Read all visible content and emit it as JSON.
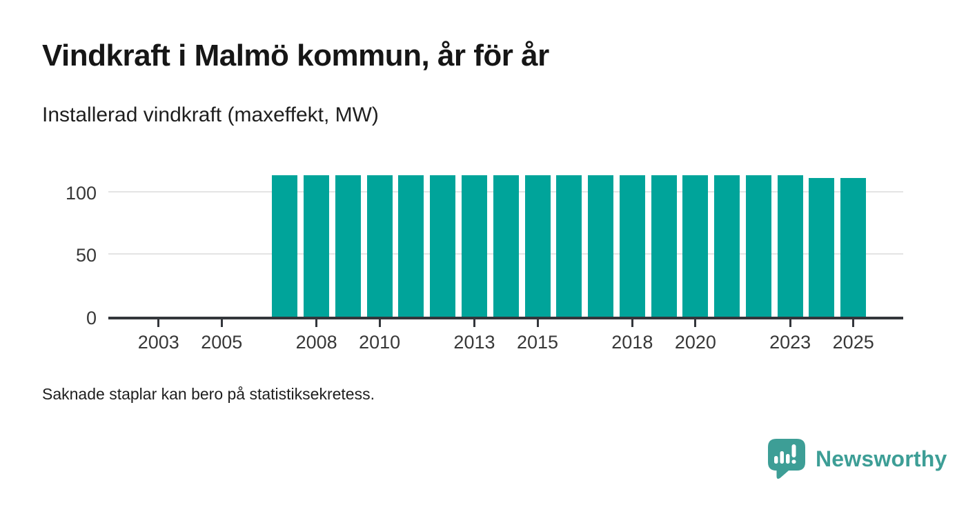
{
  "header": {
    "title": "Vindkraft i Malmö kommun, år för år",
    "subtitle": "Installerad vindkraft (maxeffekt, MW)"
  },
  "footnote": "Saknade staplar kan bero på statistiksekretess.",
  "branding": {
    "name": "Newsworthy",
    "logo_icon": "newsworthy-bubble-chart-icon",
    "logo_color": "#3d9e96"
  },
  "chart_data": {
    "type": "bar",
    "title": "Vindkraft i Malmö kommun, år för år",
    "ylabel": "Installerad vindkraft (maxeffekt, MW)",
    "xlabel": "",
    "x": [
      2002,
      2003,
      2004,
      2005,
      2006,
      2007,
      2008,
      2009,
      2010,
      2011,
      2012,
      2013,
      2014,
      2015,
      2016,
      2017,
      2018,
      2019,
      2020,
      2021,
      2022,
      2023,
      2024,
      2025
    ],
    "values": [
      null,
      null,
      null,
      null,
      null,
      113,
      113,
      113,
      113,
      113,
      113,
      113,
      113,
      113,
      113,
      113,
      113,
      113,
      113,
      113,
      113,
      113,
      111,
      111
    ],
    "missing_years": [
      2002,
      2003,
      2004,
      2005,
      2006
    ],
    "bar_color": "#00a49a",
    "xtick_labels": [
      "2003",
      "2005",
      "2008",
      "2010",
      "2013",
      "2015",
      "2018",
      "2020",
      "2023",
      "2025"
    ],
    "yticks": [
      0,
      50,
      100
    ],
    "ylim": [
      0,
      118
    ],
    "grid": "horizontal",
    "legend": "none"
  }
}
